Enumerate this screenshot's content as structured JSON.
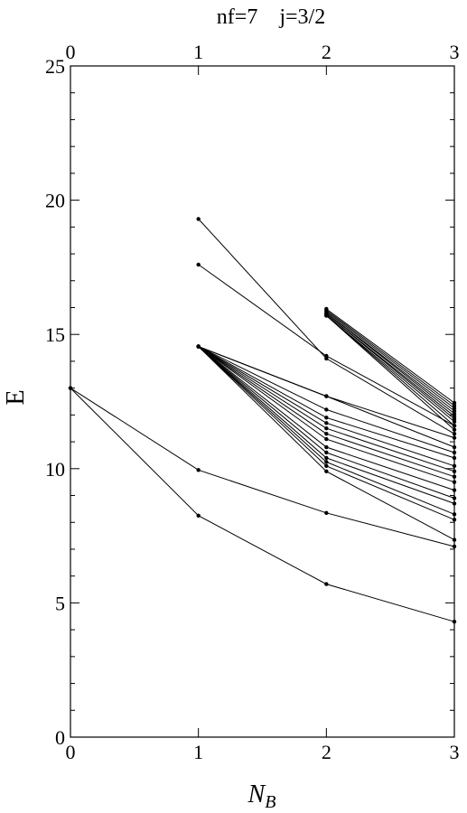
{
  "chart_data": {
    "type": "line",
    "title": "nf=7    j=3/2",
    "xlabel_main": "N",
    "xlabel_sub": "B",
    "ylabel": "E",
    "xlim": [
      0,
      3
    ],
    "ylim": [
      0,
      25
    ],
    "x_ticks": [
      0,
      1,
      2,
      3
    ],
    "y_ticks": [
      0,
      5,
      10,
      15,
      20,
      25
    ],
    "grid": false,
    "series": [
      {
        "x": [
          0,
          1,
          2,
          3
        ],
        "y": [
          13.0,
          8.25,
          5.7,
          4.3
        ]
      },
      {
        "x": [
          0,
          1,
          2,
          3
        ],
        "y": [
          13.0,
          9.95,
          8.35,
          7.1
        ]
      },
      {
        "x": [
          1,
          2,
          3
        ],
        "y": [
          19.3,
          14.1,
          11.3
        ]
      },
      {
        "x": [
          1,
          2,
          3
        ],
        "y": [
          17.6,
          14.2,
          11.6
        ]
      },
      {
        "x": [
          1,
          2,
          3
        ],
        "y": [
          14.55,
          12.7,
          11.15
        ]
      },
      {
        "x": [
          1,
          2,
          3
        ],
        "y": [
          14.55,
          12.7,
          10.8
        ]
      },
      {
        "x": [
          1,
          2,
          3
        ],
        "y": [
          14.55,
          12.2,
          10.6
        ]
      },
      {
        "x": [
          1,
          2,
          3
        ],
        "y": [
          14.55,
          11.9,
          10.4
        ]
      },
      {
        "x": [
          1,
          2,
          3
        ],
        "y": [
          14.55,
          11.7,
          10.1
        ]
      },
      {
        "x": [
          1,
          2,
          3
        ],
        "y": [
          14.55,
          11.5,
          9.9
        ]
      },
      {
        "x": [
          1,
          2,
          3
        ],
        "y": [
          14.55,
          11.3,
          9.7
        ]
      },
      {
        "x": [
          1,
          2,
          3
        ],
        "y": [
          14.55,
          11.1,
          9.5
        ]
      },
      {
        "x": [
          1,
          2,
          3
        ],
        "y": [
          14.55,
          10.8,
          9.2
        ]
      },
      {
        "x": [
          1,
          2,
          3
        ],
        "y": [
          14.55,
          10.6,
          8.9
        ]
      },
      {
        "x": [
          1,
          2,
          3
        ],
        "y": [
          14.55,
          10.4,
          8.7
        ]
      },
      {
        "x": [
          1,
          2,
          3
        ],
        "y": [
          14.55,
          10.25,
          8.3
        ]
      },
      {
        "x": [
          1,
          2,
          3
        ],
        "y": [
          14.55,
          10.1,
          8.1
        ]
      },
      {
        "x": [
          1,
          2,
          3
        ],
        "y": [
          14.55,
          9.9,
          7.35
        ]
      },
      {
        "x": [
          2,
          3
        ],
        "y": [
          15.95,
          12.45
        ]
      },
      {
        "x": [
          2,
          3
        ],
        "y": [
          15.9,
          12.35
        ]
      },
      {
        "x": [
          2,
          3
        ],
        "y": [
          15.85,
          12.25
        ]
      },
      {
        "x": [
          2,
          3
        ],
        "y": [
          15.8,
          12.15
        ]
      },
      {
        "x": [
          2,
          3
        ],
        "y": [
          15.8,
          12.05
        ]
      },
      {
        "x": [
          2,
          3
        ],
        "y": [
          15.75,
          11.95
        ]
      },
      {
        "x": [
          2,
          3
        ],
        "y": [
          15.75,
          11.85
        ]
      },
      {
        "x": [
          2,
          3
        ],
        "y": [
          15.7,
          11.75
        ]
      },
      {
        "x": [
          2,
          3
        ],
        "y": [
          15.7,
          11.6
        ]
      },
      {
        "x": [
          2,
          3
        ],
        "y": [
          15.7,
          11.45
        ]
      }
    ]
  }
}
